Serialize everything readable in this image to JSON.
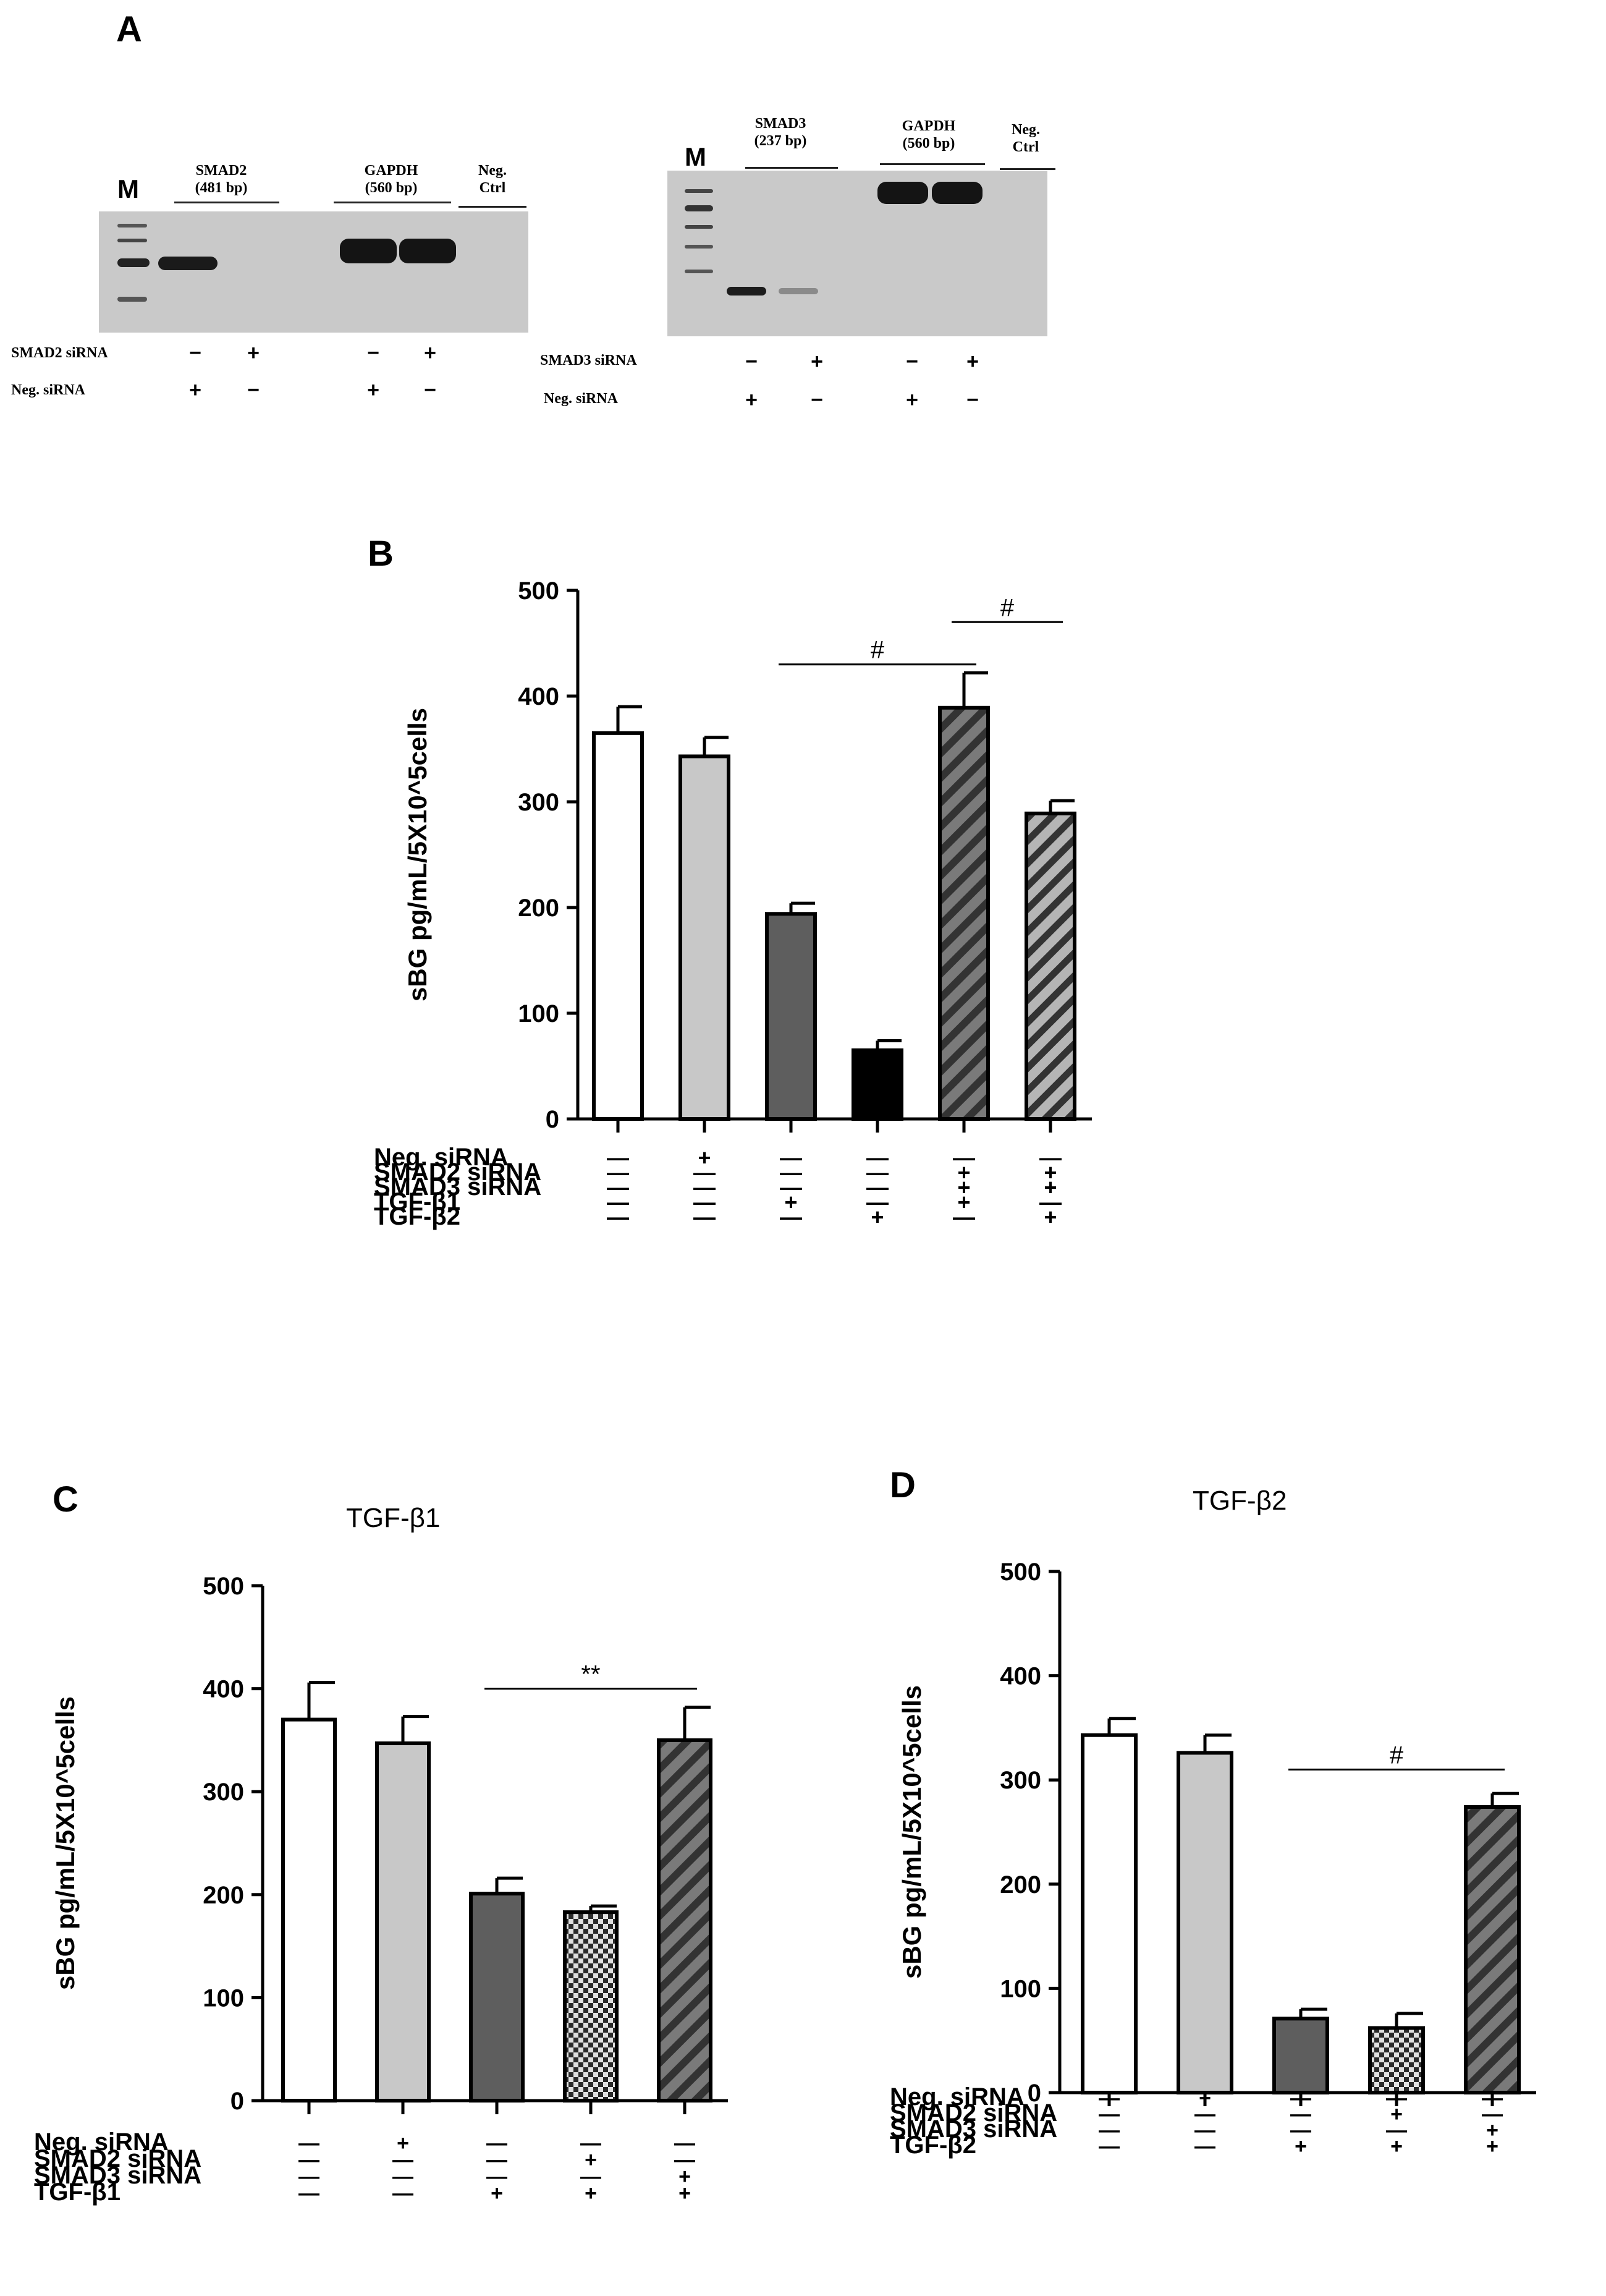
{
  "panel_a": {
    "letter": "A",
    "gel1": {
      "marker": "M",
      "labels": [
        {
          "line1": "SMAD2",
          "line2": "(481 bp)"
        },
        {
          "line1": "GAPDH",
          "line2": "(560 bp)"
        },
        {
          "line1": "Neg.",
          "line2": "Ctrl"
        }
      ],
      "rows": [
        {
          "label": "SMAD2 siRNA",
          "signs": [
            "−",
            "+",
            "−",
            "+"
          ]
        },
        {
          "label": "Neg. siRNA",
          "signs": [
            "+",
            "−",
            "+",
            "−"
          ]
        }
      ]
    },
    "gel2": {
      "marker": "M",
      "labels": [
        {
          "line1": "SMAD3",
          "line2": "(237 bp)"
        },
        {
          "line1": "GAPDH",
          "line2": "(560 bp)"
        },
        {
          "line1": "Neg.",
          "line2": "Ctrl"
        }
      ],
      "rows": [
        {
          "label": "SMAD3 siRNA",
          "signs": [
            "−",
            "+",
            "−",
            "+"
          ]
        },
        {
          "label": "Neg. siRNA",
          "signs": [
            "+",
            "−",
            "+",
            "−"
          ]
        }
      ]
    }
  },
  "chart_data": [
    {
      "id": "B",
      "type": "bar",
      "letter": "B",
      "title": "",
      "ylabel": "sBG pg/mL/5X10^5cells",
      "ylim": [
        0,
        500
      ],
      "yticks": [
        0,
        100,
        200,
        300,
        400,
        500
      ],
      "values": [
        365,
        343,
        194,
        65,
        389,
        289
      ],
      "errors": [
        25,
        18,
        10,
        9,
        33,
        12
      ],
      "fills": [
        "white",
        "lightgray",
        "darkgray",
        "black",
        "stripe-dark",
        "stripe-light"
      ],
      "annotations": [
        {
          "text": "#",
          "from": 2,
          "to": 4,
          "y": 430
        },
        {
          "text": "#",
          "from": 4,
          "to": 5,
          "y": 470
        }
      ],
      "conditions": [
        {
          "label": "Neg. siRNA",
          "signs": [
            "—",
            "+",
            "—",
            "—",
            "—",
            "—"
          ]
        },
        {
          "label": "SMAD2 siRNA",
          "signs": [
            "—",
            "—",
            "—",
            "—",
            "+",
            "+"
          ]
        },
        {
          "label": "SMAD3 siRNA",
          "signs": [
            "—",
            "—",
            "—",
            "—",
            "+",
            "+"
          ]
        },
        {
          "label": "TGF-β1",
          "signs": [
            "—",
            "—",
            "+",
            "—",
            "+",
            "—"
          ]
        },
        {
          "label": "TGF-β2",
          "signs": [
            "—",
            "—",
            "—",
            "+",
            "—",
            "+"
          ]
        }
      ]
    },
    {
      "id": "C",
      "type": "bar",
      "letter": "C",
      "title": "TGF-β1",
      "ylabel": "sBG pg/mL/5X10^5cells",
      "ylim": [
        0,
        500
      ],
      "yticks": [
        0,
        100,
        200,
        300,
        400,
        500
      ],
      "values": [
        370,
        347,
        201,
        183,
        350
      ],
      "errors": [
        36,
        26,
        15,
        6,
        32
      ],
      "fills": [
        "white",
        "lightgray",
        "darkgray",
        "checker",
        "stripe-dark"
      ],
      "annotations": [
        {
          "text": "**",
          "from": 2,
          "to": 4,
          "y": 400
        }
      ],
      "conditions": [
        {
          "label": "Neg. siRNA",
          "signs": [
            "—",
            "+",
            "—",
            "—",
            "—"
          ]
        },
        {
          "label": "SMAD2 siRNA",
          "signs": [
            "—",
            "—",
            "—",
            "+",
            "—"
          ]
        },
        {
          "label": "SMAD3 siRNA",
          "signs": [
            "—",
            "—",
            "—",
            "—",
            "+"
          ]
        },
        {
          "label": "TGF-β1",
          "signs": [
            "—",
            "—",
            "+",
            "+",
            "+"
          ]
        }
      ]
    },
    {
      "id": "D",
      "type": "bar",
      "letter": "D",
      "title": "TGF-β2",
      "ylabel": "sBG pg/mL/5X10^5cells",
      "ylim": [
        0,
        500
      ],
      "yticks": [
        0,
        100,
        200,
        300,
        400,
        500
      ],
      "values": [
        343,
        326,
        71,
        62,
        274
      ],
      "errors": [
        16,
        17,
        9,
        14,
        13
      ],
      "fills": [
        "white",
        "lightgray",
        "darkgray",
        "checker",
        "stripe-dark"
      ],
      "annotations": [
        {
          "text": "#",
          "from": 2,
          "to": 4,
          "y": 310
        }
      ],
      "conditions": [
        {
          "label": "Neg. siRNA",
          "signs": [
            "—",
            "+",
            "—",
            "—",
            "—"
          ]
        },
        {
          "label": "SMAD2 siRNA",
          "signs": [
            "—",
            "—",
            "—",
            "+",
            "—"
          ]
        },
        {
          "label": "SMAD3 siRNA",
          "signs": [
            "—",
            "—",
            "—",
            "—",
            "+"
          ]
        },
        {
          "label": "TGF-β2",
          "signs": [
            "—",
            "—",
            "+",
            "+",
            "+"
          ]
        }
      ]
    }
  ]
}
